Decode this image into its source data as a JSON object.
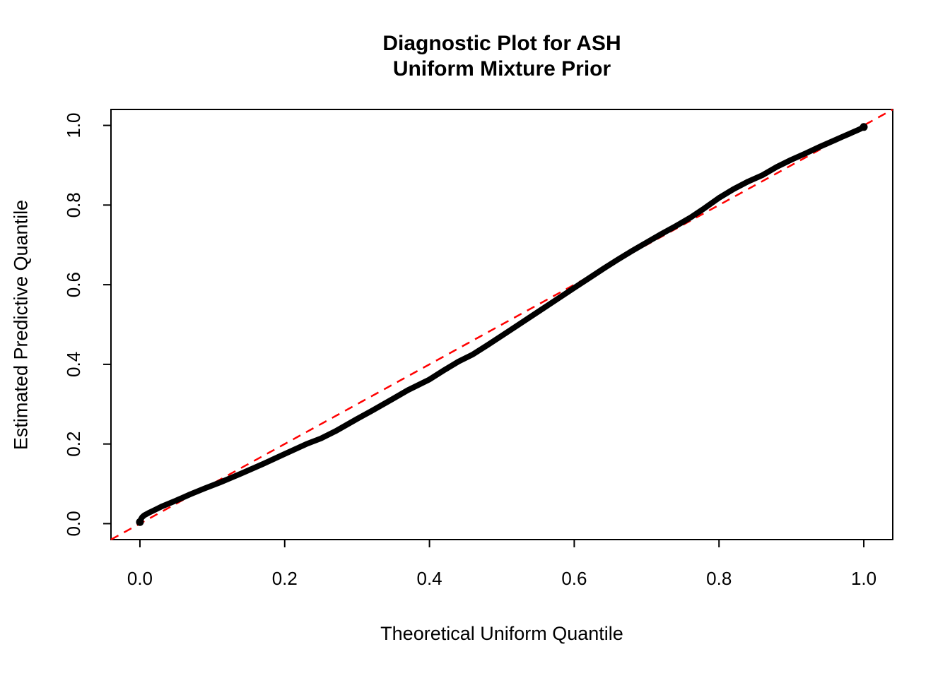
{
  "title": {
    "line1": "Diagnostic Plot for ASH",
    "line2": "Uniform Mixture Prior"
  },
  "colors": {
    "background": "#FFFFFF",
    "axis": "#000000",
    "curve": "#000000",
    "reference_line": "#FF0000"
  },
  "chart_data": {
    "type": "scatter",
    "title": "Diagnostic Plot for ASH\nUniform Mixture Prior",
    "xlabel": "Theoretical Uniform Quantile",
    "ylabel": "Estimated Predictive Quantile",
    "xlim": [
      -0.04,
      1.04
    ],
    "ylim": [
      -0.04,
      1.04
    ],
    "x_ticks": [
      0.0,
      0.2,
      0.4,
      0.6,
      0.8,
      1.0
    ],
    "y_ticks": [
      0.0,
      0.2,
      0.4,
      0.6,
      0.8,
      1.0
    ],
    "grid": false,
    "legend_position": "none",
    "series": [
      {
        "name": "qq-points",
        "description": "Estimated predictive quantiles vs theoretical uniform quantiles (dense point curve)",
        "color": "#000000",
        "style": "thick-point-curve",
        "points": [
          [
            0.0,
            0.004
          ],
          [
            0.001,
            0.01
          ],
          [
            0.003,
            0.016
          ],
          [
            0.006,
            0.021
          ],
          [
            0.012,
            0.027
          ],
          [
            0.02,
            0.034
          ],
          [
            0.03,
            0.043
          ],
          [
            0.05,
            0.058
          ],
          [
            0.07,
            0.074
          ],
          [
            0.09,
            0.089
          ],
          [
            0.11,
            0.103
          ],
          [
            0.14,
            0.126
          ],
          [
            0.17,
            0.15
          ],
          [
            0.2,
            0.175
          ],
          [
            0.23,
            0.2
          ],
          [
            0.25,
            0.214
          ],
          [
            0.27,
            0.232
          ],
          [
            0.3,
            0.263
          ],
          [
            0.32,
            0.283
          ],
          [
            0.35,
            0.314
          ],
          [
            0.37,
            0.335
          ],
          [
            0.4,
            0.362
          ],
          [
            0.42,
            0.385
          ],
          [
            0.44,
            0.407
          ],
          [
            0.46,
            0.425
          ],
          [
            0.48,
            0.448
          ],
          [
            0.5,
            0.472
          ],
          [
            0.52,
            0.496
          ],
          [
            0.55,
            0.532
          ],
          [
            0.57,
            0.556
          ],
          [
            0.6,
            0.592
          ],
          [
            0.62,
            0.616
          ],
          [
            0.64,
            0.64
          ],
          [
            0.66,
            0.663
          ],
          [
            0.68,
            0.685
          ],
          [
            0.7,
            0.706
          ],
          [
            0.72,
            0.727
          ],
          [
            0.74,
            0.747
          ],
          [
            0.76,
            0.768
          ],
          [
            0.78,
            0.792
          ],
          [
            0.8,
            0.818
          ],
          [
            0.82,
            0.84
          ],
          [
            0.84,
            0.859
          ],
          [
            0.86,
            0.875
          ],
          [
            0.88,
            0.896
          ],
          [
            0.9,
            0.914
          ],
          [
            0.92,
            0.93
          ],
          [
            0.94,
            0.947
          ],
          [
            0.96,
            0.963
          ],
          [
            0.97,
            0.971
          ],
          [
            0.98,
            0.979
          ],
          [
            0.985,
            0.983
          ],
          [
            0.99,
            0.987
          ],
          [
            0.995,
            0.991
          ],
          [
            1.0,
            0.996
          ]
        ]
      },
      {
        "name": "identity-reference",
        "description": "y = x reference line",
        "color": "#FF0000",
        "style": "dashed-line",
        "points": [
          [
            -0.04,
            -0.04
          ],
          [
            1.04,
            1.04
          ]
        ]
      }
    ]
  }
}
